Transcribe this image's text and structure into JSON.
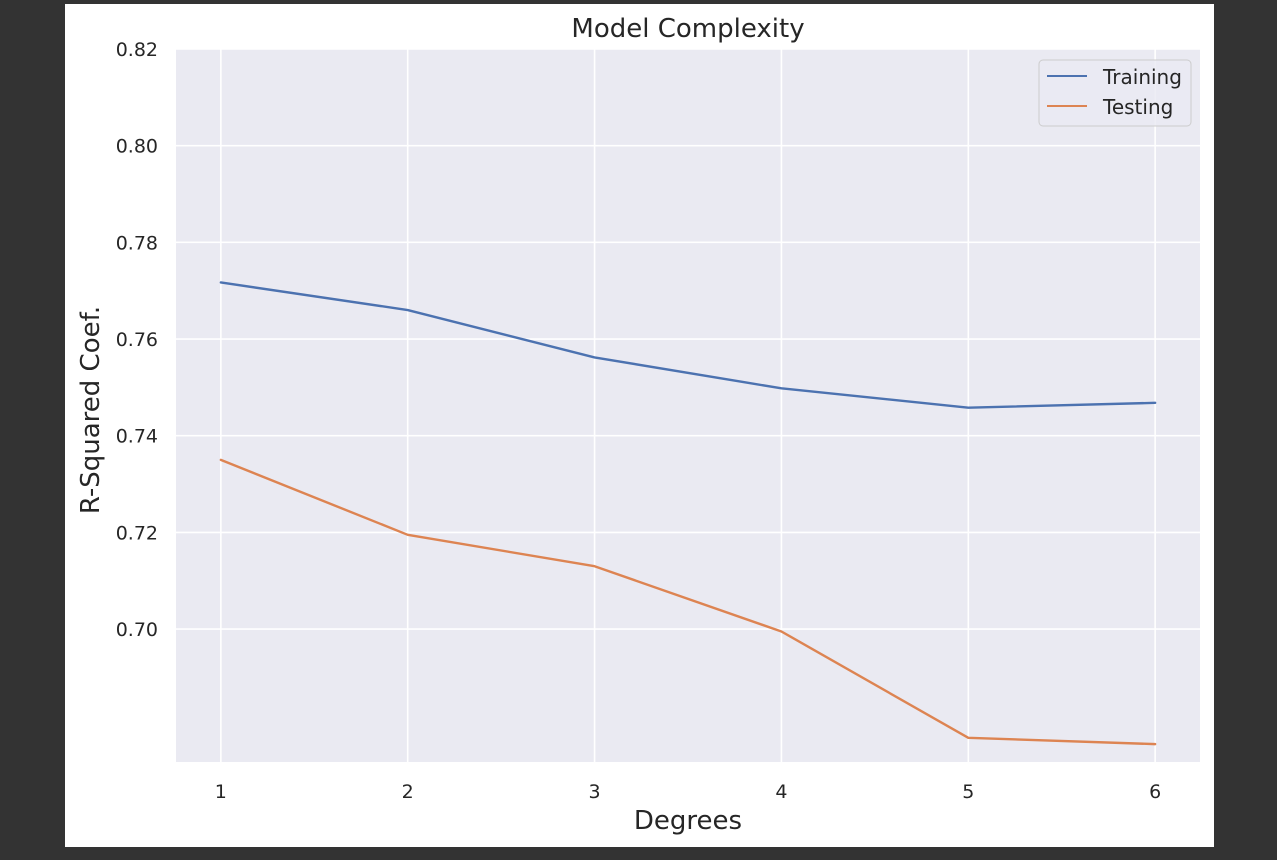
{
  "colors": {
    "outer_background": "#333333",
    "figure_background": "#ffffff",
    "plot_background": "#eaeaf2",
    "grid": "#ffffff",
    "text": "#262626",
    "training": "#4c72b0",
    "testing": "#dd8452"
  },
  "chart_data": {
    "type": "line",
    "title": "Model Complexity",
    "xlabel": "Degrees",
    "ylabel": "R-Squared Coef.",
    "x": [
      1,
      2,
      3,
      4,
      5,
      6
    ],
    "xticks": [
      "1",
      "2",
      "3",
      "4",
      "5",
      "6"
    ],
    "yticks": [
      "0.70",
      "0.72",
      "0.74",
      "0.76",
      "0.78",
      "0.80",
      "0.82"
    ],
    "xlim": [
      0.76,
      6.24
    ],
    "ylim": [
      0.6725,
      0.82
    ],
    "grid": true,
    "legend_position": "top-right",
    "series": [
      {
        "name": "Training",
        "color": "#4c72b0",
        "values": [
          0.7717,
          0.766,
          0.7562,
          0.7498,
          0.7458,
          0.7468
        ]
      },
      {
        "name": "Testing",
        "color": "#dd8452",
        "values": [
          0.735,
          0.7195,
          0.713,
          0.6995,
          0.6775,
          0.6762
        ]
      }
    ]
  }
}
